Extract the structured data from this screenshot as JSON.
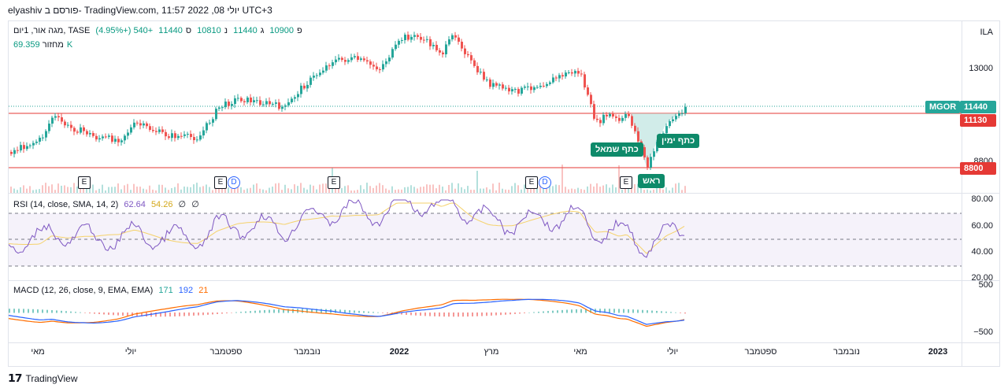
{
  "header": {
    "snapshot_line": "elyashiv פורסם ב- TradingView.com, יולי 08, 2022 11:57 UTC+3"
  },
  "legend": {
    "symbol": "מגה אור, 1יום, TASE",
    "open_label": "פ",
    "open": "10900",
    "high_label": "ג",
    "high": "11440",
    "low_label": "נ",
    "low": "10810",
    "close_label": "ס",
    "close": "11440",
    "change": "+540 (+4.95%)",
    "volume_label": "מחזור",
    "volume": "69.359K"
  },
  "rsi_legend": {
    "label": "RSI (14, close, SMA, 14, 2)",
    "v1": "62.64",
    "v2": "54.26",
    "v3": "∅",
    "v4": "∅"
  },
  "macd_legend": {
    "label": "MACD (12, 26, close, 9, EMA, EMA)",
    "v1": "171",
    "v2": "192",
    "v3": "21"
  },
  "price_axis": {
    "currency": "ILA",
    "ticks": [
      "13000",
      "8800"
    ]
  },
  "rsi_axis": [
    "80.00",
    "60.00",
    "40.00",
    "20.00"
  ],
  "macd_axis": [
    "500",
    "−500"
  ],
  "tags": {
    "symbol": "MGOR",
    "last": "11440",
    "resistance": "11130",
    "support": "8800"
  },
  "annotations": {
    "left_shoulder": "כתף שמאל",
    "right_shoulder": "כתף ימין",
    "head": "ראש"
  },
  "events": [
    "E",
    "E",
    "D",
    "E",
    "E",
    "D",
    "E"
  ],
  "time_axis": [
    "מאי",
    "יולי",
    "ספטמבר",
    "נובמבר",
    "2022",
    "מרץ",
    "מאי",
    "יולי",
    "ספטמבר",
    "נובמבר",
    "2023"
  ],
  "footer": {
    "brand": "TradingView"
  },
  "colors": {
    "up": "#26a69a",
    "down": "#ef5350",
    "rsi": "#7e57c2",
    "rsi_ma": "#f5d26b",
    "macd": "#2962ff",
    "signal": "#ff6d00",
    "line_red": "#e53935"
  }
}
